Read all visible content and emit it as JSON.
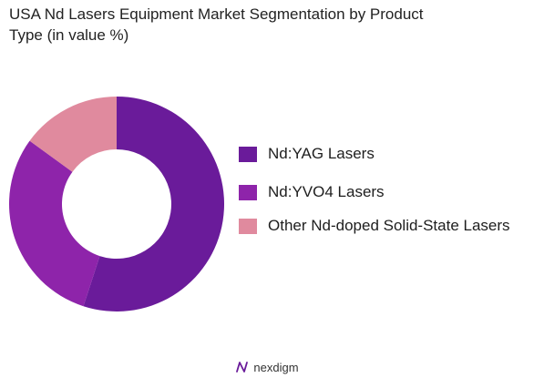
{
  "chart_data": {
    "type": "pie",
    "title": "USA Nd Lasers Equipment Market Segmentation by Product\nType (in value %)",
    "series": [
      {
        "name": "Nd:YAG Lasers",
        "value": 55,
        "color": "#6a1b9a"
      },
      {
        "name": "Nd:YVO4 Lasers",
        "value": 30,
        "color": "#8e24aa"
      },
      {
        "name": "Other Nd-doped Solid-State Lasers",
        "value": 15,
        "color": "#e08a9e"
      }
    ],
    "legend_position": "right"
  },
  "legend": {
    "items": [
      {
        "label": "Nd:YAG Lasers",
        "color": "#6a1b9a"
      },
      {
        "label": "Nd:YVO4 Lasers",
        "color": "#8e24aa"
      },
      {
        "label": "Other Nd-doped Solid-State Lasers",
        "color": "#e08a9e"
      }
    ]
  },
  "footer": {
    "brand": "nexdigm"
  }
}
